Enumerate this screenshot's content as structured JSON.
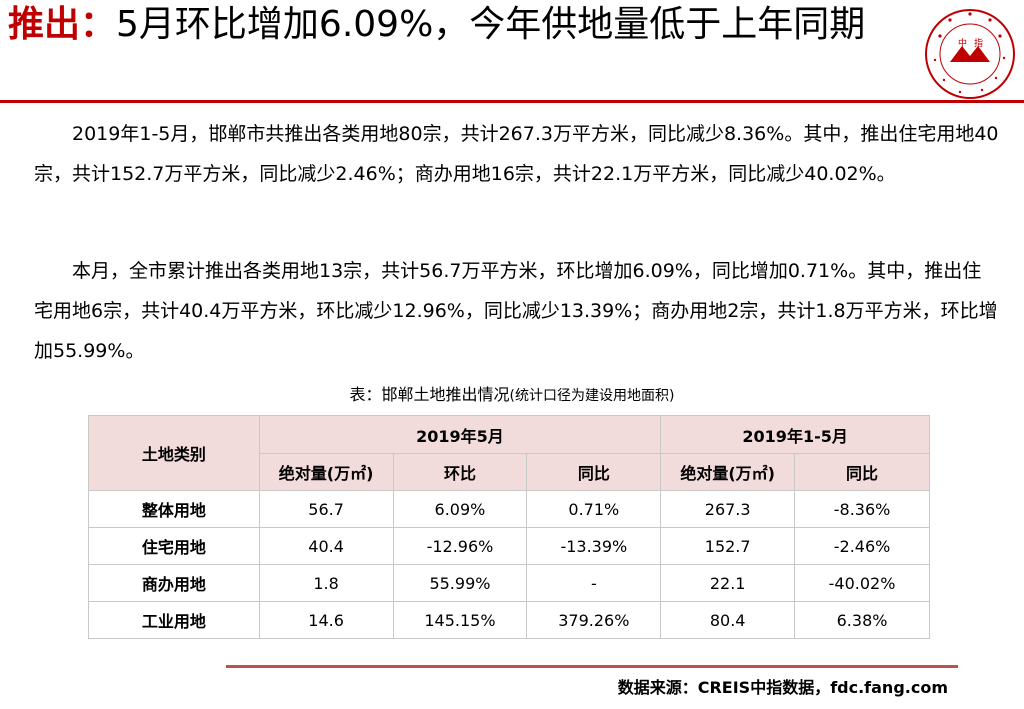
{
  "title": {
    "prefix": "推出：",
    "text": "5月环比增加6.09%，今年供地量低于上年同期"
  },
  "logo": {
    "icon": "china-index-academy-seal-icon",
    "chars": [
      "中",
      "指"
    ],
    "ring_text": "中國指數研究院 CHINA INDEX ACADEMY",
    "color": "#c00000"
  },
  "paragraphs": [
    "2019年1-5月，邯郸市共推出各类用地80宗，共计267.3万平方米，同比减少8.36%。其中，推出住宅用地40宗，共计152.7万平方米，同比减少2.46%；商办用地16宗，共计22.1万平方米，同比减少40.02%。",
    "本月，全市累计推出各类用地13宗，共计56.7万平方米，环比增加6.09%，同比增加0.71%。其中，推出住宅用地6宗，共计40.4万平方米，环比减少12.96%，同比减少13.39%；商办用地2宗，共计1.8万平方米，环比增加55.99%。"
  ],
  "caption": {
    "main": "表：邯郸土地推出情况",
    "note": "(统计口径为建设用地面积)"
  },
  "table": {
    "corner": "土地类别",
    "group1": "2019年5月",
    "group2": "2019年1-5月",
    "subheaders": [
      "绝对量(万㎡)",
      "环比",
      "同比",
      "绝对量(万㎡)",
      "同比"
    ],
    "rows": [
      {
        "name": "整体用地",
        "cells": [
          "56.7",
          "6.09%",
          "0.71%",
          "267.3",
          "-8.36%"
        ]
      },
      {
        "name": "住宅用地",
        "cells": [
          "40.4",
          "-12.96%",
          "-13.39%",
          "152.7",
          "-2.46%"
        ]
      },
      {
        "name": "商办用地",
        "cells": [
          "1.8",
          "55.99%",
          "-",
          "22.1",
          "-40.02%"
        ]
      },
      {
        "name": "工业用地",
        "cells": [
          "14.6",
          "145.15%",
          "379.26%",
          "80.4",
          "6.38%"
        ]
      }
    ]
  },
  "source": "数据来源：CREIS中指数据，fdc.fang.com",
  "colors": {
    "accent": "#c00000",
    "table_header_bg": "#f2dcdb",
    "table_border": "#c8c8c8",
    "bottom_rule": "#c0504d"
  }
}
